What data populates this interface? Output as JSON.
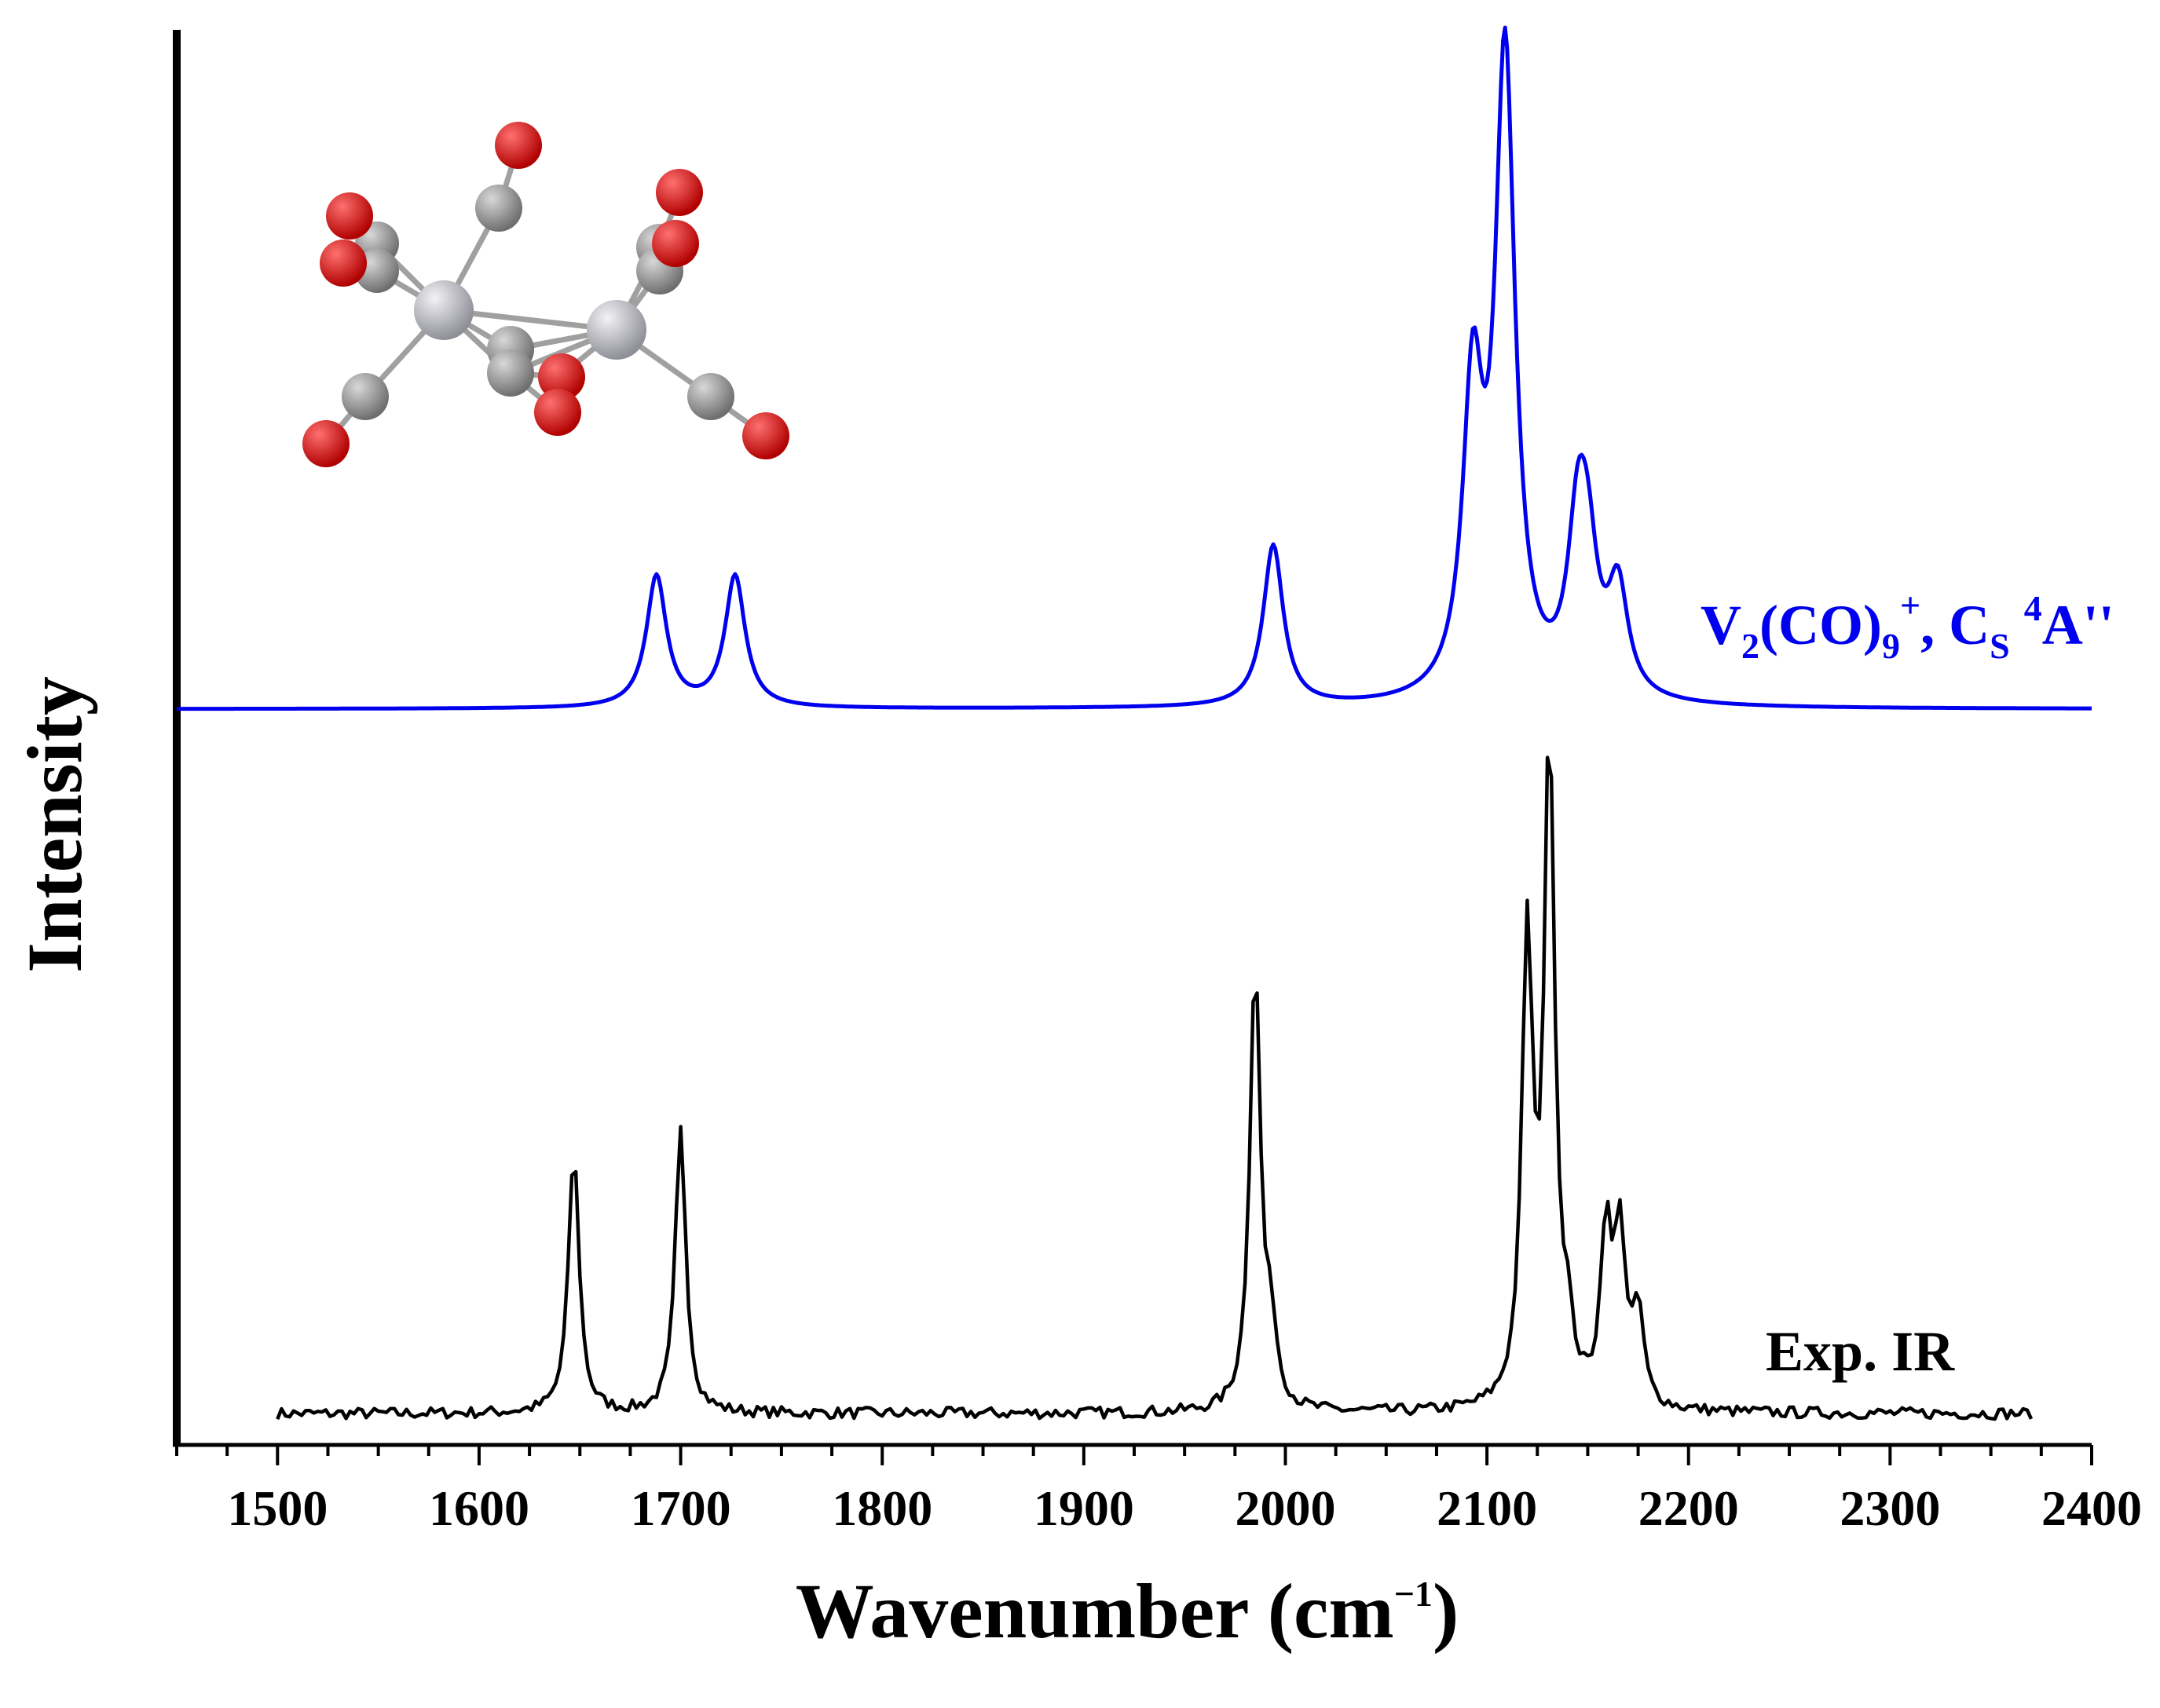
{
  "chart_data": {
    "type": "line",
    "title": "",
    "xlabel": "Wavenumber (cm",
    "xlabel_unit_sup": "−1",
    "xlabel_close": ")",
    "ylabel": "Intensity",
    "xlim": [
      1450,
      2400
    ],
    "ylim": [
      0,
      1
    ],
    "x_ticks": [
      1500,
      1600,
      1700,
      1800,
      1900,
      2000,
      2100,
      2200,
      2300,
      2400
    ],
    "y_ticks_shown": false,
    "grid": false,
    "colors": {
      "calc": "#0000ee",
      "exp": "#000000",
      "carbon": "#8c8c8c",
      "oxygen": "#e00000",
      "vanadium": "#b8b8c0"
    },
    "series": [
      {
        "name_parts": [
          "V",
          "2",
          "(CO)",
          "9",
          "+",
          ", C",
          "S",
          " ",
          "4",
          "A''"
        ],
        "color": "#0000ee",
        "baseline": 0.52,
        "range": [
          1450,
          2400
        ],
        "peaks": [
          {
            "x": 1688,
            "h": 0.093
          },
          {
            "x": 1727,
            "h": 0.093
          },
          {
            "x": 1994,
            "h": 0.114
          },
          {
            "x": 2093,
            "h": 0.21
          },
          {
            "x": 2109,
            "h": 0.45
          },
          {
            "x": 2145,
            "h": 0.105
          },
          {
            "x": 2150,
            "h": 0.08
          },
          {
            "x": 2165,
            "h": 0.075
          }
        ]
      },
      {
        "name": "Exp. IR",
        "color": "#000000",
        "baseline": 0.022,
        "range": [
          1500,
          2370
        ],
        "peaks": [
          {
            "x": 1647,
            "h": 0.185
          },
          {
            "x": 1700,
            "h": 0.2
          },
          {
            "x": 1985,
            "h": 0.315
          },
          {
            "x": 1993,
            "h": 0.05
          },
          {
            "x": 2120,
            "h": 0.325
          },
          {
            "x": 2131,
            "h": 0.465
          },
          {
            "x": 2159,
            "h": 0.12
          },
          {
            "x": 2166,
            "h": 0.12
          },
          {
            "x": 2175,
            "h": 0.065
          },
          {
            "x": 2140,
            "h": 0.04
          }
        ]
      }
    ],
    "inset_molecule": "V2(CO)9+ ball-and-stick structure"
  }
}
